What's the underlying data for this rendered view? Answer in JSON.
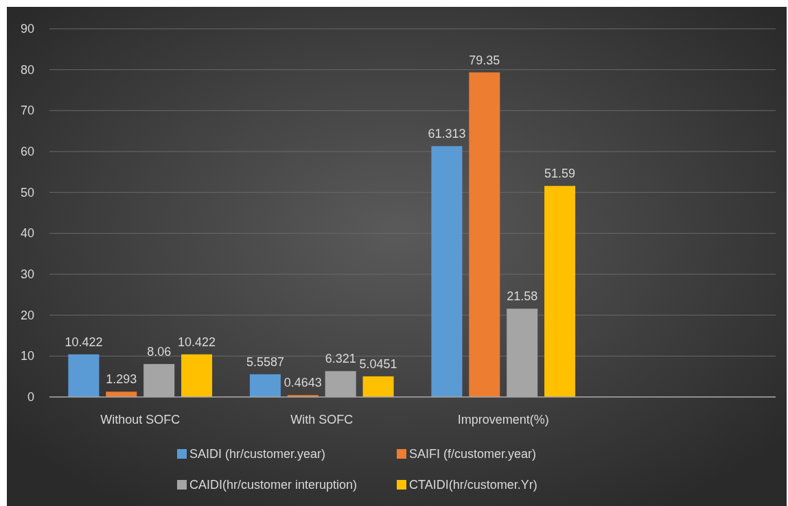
{
  "chart_data": {
    "type": "bar",
    "categories": [
      "Without SOFC",
      "With SOFC",
      "Improvement(%)",
      null
    ],
    "series": [
      {
        "name": "SAIDI (hr/customer.year)",
        "color": "#5b9bd5",
        "values": [
          10.422,
          5.5587,
          61.313,
          null
        ]
      },
      {
        "name": "SAIFI (f/customer.year)",
        "color": "#ed7d31",
        "values": [
          1.293,
          0.4643,
          79.35,
          null
        ]
      },
      {
        "name": "CAIDI(hr/customer interuption)",
        "color": "#a5a5a5",
        "values": [
          8.06,
          6.321,
          21.58,
          null
        ]
      },
      {
        "name": "CTAIDI(hr/customer.Yr)",
        "color": "#ffc000",
        "values": [
          10.422,
          5.0451,
          51.59,
          null
        ]
      }
    ],
    "ylim": [
      0,
      90
    ],
    "yticks": [
      0,
      10,
      20,
      30,
      40,
      50,
      60,
      70,
      80,
      90
    ],
    "grid": "y",
    "legend": "bottom",
    "data_labels": true
  }
}
